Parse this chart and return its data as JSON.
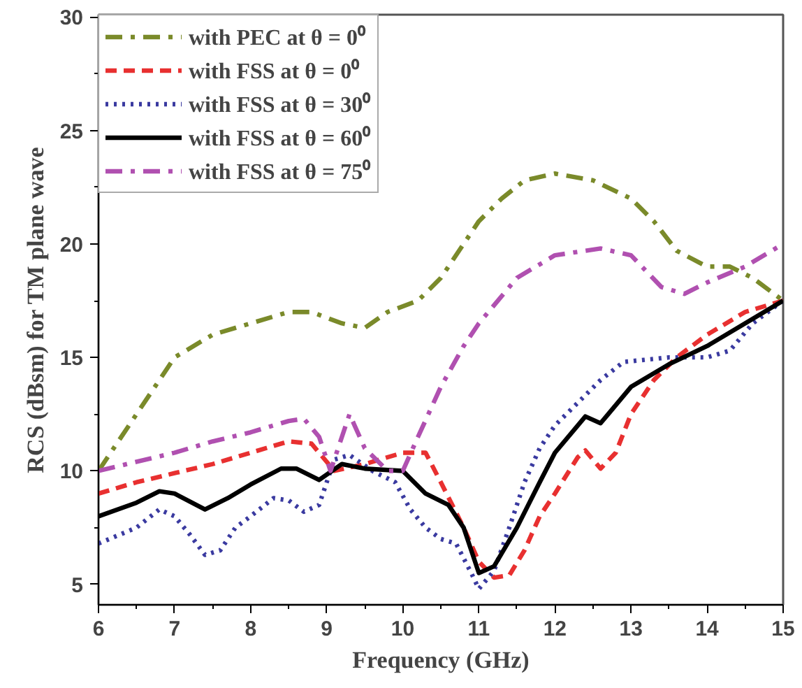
{
  "chart_data": {
    "type": "line",
    "xlabel": "Frequency (GHz)",
    "ylabel": "RCS (dBsm) for TM plane wave",
    "xlim": [
      6,
      15
    ],
    "ylim": [
      4.1,
      30.1
    ],
    "xticks": [
      6,
      7,
      8,
      9,
      10,
      11,
      12,
      13,
      14,
      15
    ],
    "yticks": [
      5,
      10,
      15,
      20,
      25,
      30
    ],
    "grid": false,
    "legend": "top left",
    "marker": "none",
    "series": [
      {
        "name": "with PEC at θ = 0⁰",
        "color": "#7a8a2a",
        "line_style": "dashdot",
        "x": [
          6,
          6.5,
          7,
          7.5,
          8,
          8.5,
          8.8,
          9.2,
          9.5,
          9.8,
          10.2,
          10.5,
          10.8,
          11,
          11.3,
          11.6,
          12,
          12.5,
          13,
          13.3,
          13.6,
          14,
          14.3,
          14.6,
          15
        ],
        "values": [
          10,
          12.5,
          15,
          16,
          16.5,
          17,
          17,
          16.5,
          16.3,
          17,
          17.5,
          18.5,
          20,
          21,
          22,
          22.8,
          23.1,
          22.8,
          22,
          21,
          19.7,
          19,
          19,
          18.5,
          17.5
        ]
      },
      {
        "name": "with FSS at θ = 0⁰",
        "color": "#e83030",
        "line_style": "dashed",
        "x": [
          6,
          6.5,
          7,
          7.5,
          8,
          8.5,
          8.8,
          9.1,
          9.5,
          10,
          10.3,
          10.5,
          10.8,
          11,
          11.2,
          11.4,
          11.6,
          11.8,
          12,
          12.3,
          12.4,
          12.6,
          12.8,
          13,
          13.3,
          13.6,
          14,
          14.5,
          15
        ],
        "values": [
          9,
          9.5,
          9.9,
          10.3,
          10.8,
          11.3,
          11.2,
          10,
          10.3,
          10.8,
          10.8,
          9.5,
          7.5,
          6,
          5.3,
          5.4,
          6.5,
          8,
          9,
          10.6,
          10.9,
          10.1,
          10.8,
          12.5,
          14,
          15,
          16,
          17,
          17.5
        ]
      },
      {
        "name": "with FSS at θ = 30⁰",
        "color": "#3a3aa0",
        "line_style": "dotted",
        "x": [
          6,
          6.5,
          6.8,
          7,
          7.2,
          7.4,
          7.6,
          7.8,
          8,
          8.3,
          8.5,
          8.7,
          8.9,
          9.1,
          9.3,
          9.6,
          9.9,
          10.1,
          10.3,
          10.5,
          10.7,
          10.9,
          11,
          11.2,
          11.4,
          11.6,
          11.8,
          12,
          12.3,
          12.6,
          12.9,
          13.5,
          14,
          14.3,
          14.6,
          15
        ],
        "values": [
          6.8,
          7.5,
          8.3,
          8,
          7.2,
          6.3,
          6.5,
          7.5,
          8,
          8.8,
          8.7,
          8.2,
          8.5,
          10.5,
          10.7,
          10,
          9.5,
          8.3,
          7.5,
          7,
          6.8,
          5.5,
          4.8,
          5.6,
          7.5,
          9.5,
          11,
          12,
          13,
          14,
          14.8,
          15,
          15,
          15.3,
          16.5,
          17.5
        ]
      },
      {
        "name": "with FSS at θ = 60⁰",
        "color": "#000000",
        "line_style": "solid",
        "x": [
          6,
          6.5,
          6.8,
          7,
          7.4,
          7.7,
          8,
          8.4,
          8.6,
          8.9,
          9.2,
          9.5,
          10,
          10.3,
          10.6,
          10.8,
          11,
          11.2,
          11.5,
          11.8,
          12,
          12.4,
          12.6,
          12.7,
          13,
          13.5,
          14,
          14.5,
          15
        ],
        "values": [
          8,
          8.6,
          9.1,
          9,
          8.3,
          8.8,
          9.4,
          10.1,
          10.1,
          9.6,
          10.3,
          10.1,
          10,
          9,
          8.5,
          7.5,
          5.5,
          5.8,
          7.5,
          9.5,
          10.8,
          12.4,
          12.1,
          12.5,
          13.7,
          14.7,
          15.5,
          16.5,
          17.5
        ]
      },
      {
        "name": "with FSS at θ = 75⁰",
        "color": "#b050b0",
        "line_style": "dashdot",
        "x": [
          6,
          7,
          7.5,
          8,
          8.5,
          8.7,
          8.9,
          9.05,
          9.3,
          9.5,
          9.8,
          10,
          10.2,
          10.5,
          10.8,
          11,
          11.5,
          12,
          12.6,
          13,
          13.4,
          13.7,
          14,
          14.5,
          15
        ],
        "values": [
          10,
          10.8,
          11.3,
          11.7,
          12.2,
          12.3,
          11.5,
          10,
          12.5,
          11,
          10,
          10,
          11.5,
          13.7,
          15.5,
          16.5,
          18.5,
          19.5,
          19.8,
          19.5,
          18.1,
          17.8,
          18.3,
          19,
          20
        ]
      }
    ]
  }
}
